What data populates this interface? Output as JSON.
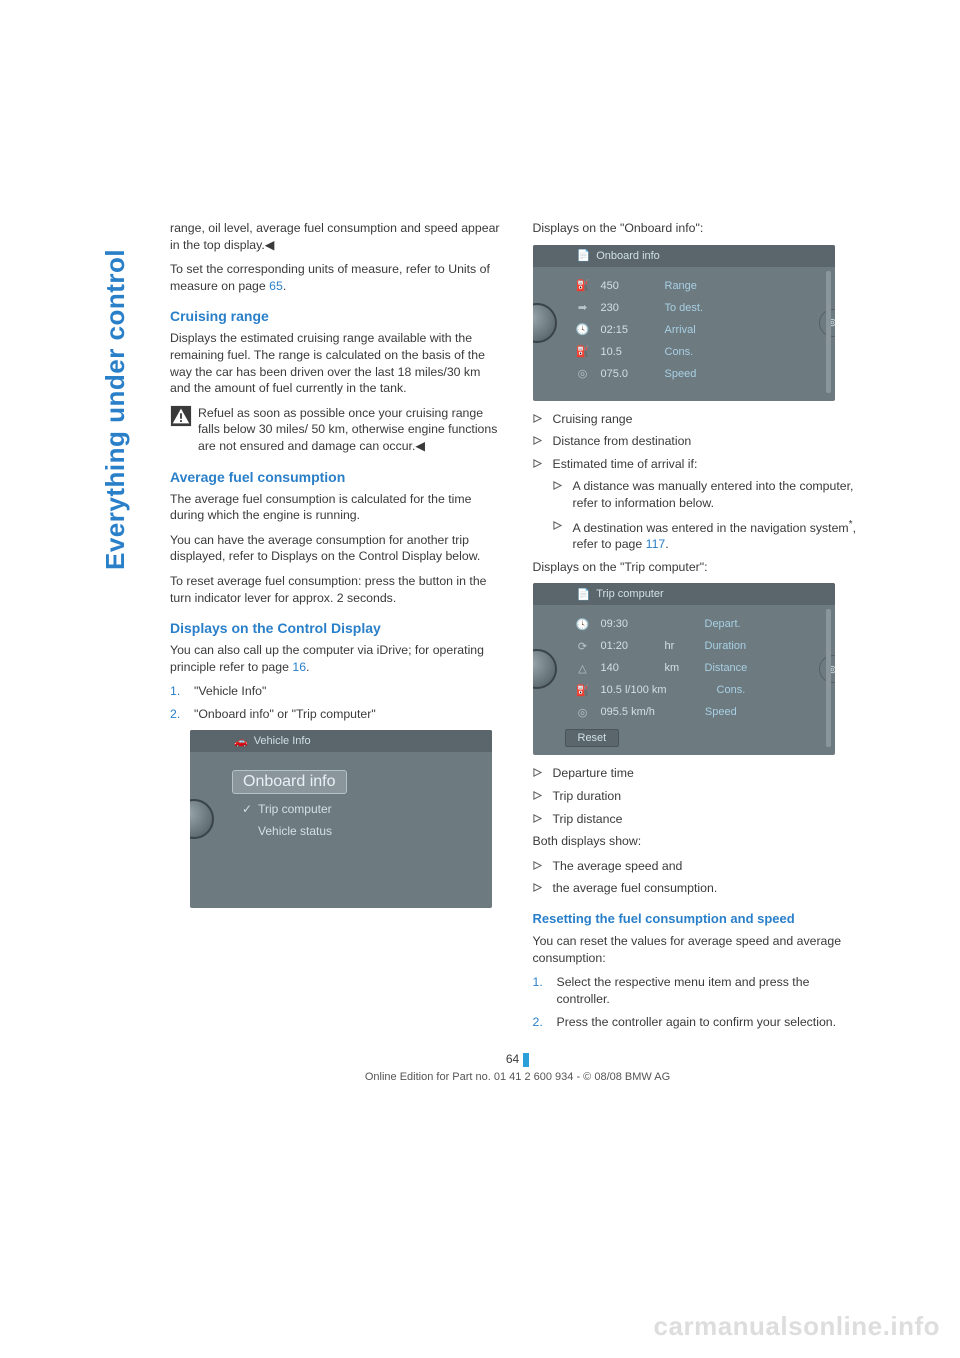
{
  "sidebar_title": "Everything under control",
  "left": {
    "intro1": "range, oil level, average fuel consumption and speed appear in the top display.",
    "intro2_a": "To set the corresponding units of measure, refer to Units of measure on page ",
    "intro2_link": "65",
    "intro2_b": ".",
    "h_cruise": "Cruising range",
    "cruise_p": "Displays the estimated cruising range available with the remaining fuel. The range is calculated on the basis of the way the car has been driven over the last 18 miles/30 km and the amount of fuel currently in the tank.",
    "warn_text": "Refuel as soon as possible once your cruising range falls below 30 miles/ 50 km, otherwise engine functions are not ensured and damage can occur.",
    "h_avg": "Average fuel consumption",
    "avg_p1": "The average fuel consumption is calculated for the time during which the engine is running.",
    "avg_p2": "You can have the average consumption for another trip displayed, refer to Displays on the Control Display below.",
    "avg_p3": "To reset average fuel consumption: press the button in the turn indicator lever for approx. 2 seconds.",
    "h_disp": "Displays on the Control Display",
    "disp_p_a": "You can also call up the computer via iDrive; for operating principle refer to page ",
    "disp_p_link": "16",
    "disp_p_b": ".",
    "ol1": "\"Vehicle Info\"",
    "ol2": "\"Onboard info\" or \"Trip computer\"",
    "ss1": {
      "title": "Vehicle Info",
      "sel": "Onboard info",
      "item2": "Trip computer",
      "item3": "Vehicle status"
    }
  },
  "right": {
    "p_onboard": "Displays on the \"Onboard info\":",
    "ss2": {
      "title": "Onboard info",
      "rows": [
        {
          "icon": "fuel",
          "v": "450",
          "lbl": "Range"
        },
        {
          "icon": "arrow",
          "v": "230",
          "lbl": "To dest."
        },
        {
          "icon": "clock",
          "v": "02:15",
          "lbl": "Arrival"
        },
        {
          "icon": "pump",
          "v": "10.5",
          "lbl": "Cons."
        },
        {
          "icon": "speed",
          "v": "075.0",
          "lbl": "Speed"
        }
      ]
    },
    "ul1": [
      "Cruising range",
      "Distance from destination",
      "Estimated time of arrival if:"
    ],
    "ul1_nested": [
      "A distance was manually entered into the computer, refer to information below.",
      "A destination was entered in the navigation system"
    ],
    "nested2_suffix_a": ", refer to page ",
    "nested2_link": "117",
    "nested2_suffix_b": ".",
    "p_trip": "Displays on the \"Trip computer\":",
    "ss3": {
      "title": "Trip computer",
      "rows": [
        {
          "icon": "clock",
          "v1": "09:30",
          "v2": "",
          "lbl": "Depart."
        },
        {
          "icon": "timer",
          "v1": "01:20",
          "v2": "hr",
          "lbl": "Duration"
        },
        {
          "icon": "dist",
          "v1": "140",
          "v2": "km",
          "lbl": "Distance"
        },
        {
          "icon": "pump",
          "v1": "10.5 l/100 km",
          "v2": "",
          "lbl": "Cons."
        },
        {
          "icon": "speed",
          "v1": "095.5 km/h",
          "v2": "",
          "lbl": "Speed"
        }
      ],
      "reset": "Reset"
    },
    "ul2": [
      "Departure time",
      "Trip duration",
      "Trip distance"
    ],
    "both_p": "Both displays show:",
    "ul3": [
      "The average speed and",
      "the average fuel consumption."
    ],
    "h_reset": "Resetting the fuel consumption and speed",
    "reset_p": "You can reset the values for average speed and average consumption:",
    "ol_r1": "Select the respective menu item and press the controller.",
    "ol_r2": "Press the controller again to confirm your selection."
  },
  "page_number": "64",
  "footer": "Online Edition for Part no. 01 41 2 600 934 - © 08/08 BMW AG",
  "watermark": "carmanualsonline.info"
}
